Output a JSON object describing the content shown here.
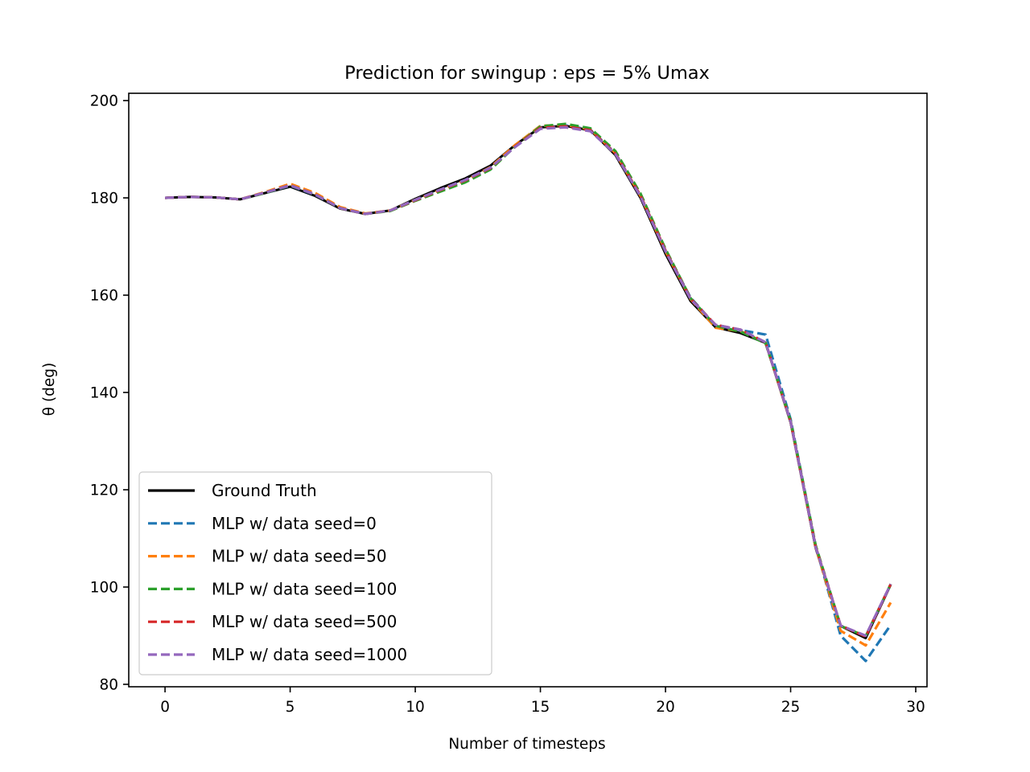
{
  "chart_data": {
    "type": "line",
    "title": "Prediction for swingup : eps = 5% Umax",
    "xlabel": "Number of timesteps",
    "ylabel": "θ (deg)",
    "xlim": [
      -1.45,
      30.45
    ],
    "ylim": [
      79.5,
      201.5
    ],
    "x_ticks": [
      "0",
      "5",
      "10",
      "15",
      "20",
      "25",
      "30"
    ],
    "y_ticks": [
      "80",
      "100",
      "120",
      "140",
      "160",
      "180",
      "200"
    ],
    "grid": false,
    "legend_position": "lower-left",
    "x": [
      0,
      1,
      2,
      3,
      4,
      5,
      6,
      7,
      8,
      9,
      10,
      11,
      12,
      13,
      14,
      15,
      16,
      17,
      18,
      19,
      20,
      21,
      22,
      23,
      24,
      25,
      26,
      27,
      28,
      29
    ],
    "series": [
      {
        "name": "Ground Truth",
        "color": "#000000",
        "style": "solid",
        "values": [
          180.0,
          180.2,
          180.1,
          179.7,
          181.0,
          182.3,
          180.4,
          177.8,
          176.7,
          177.4,
          179.8,
          182.0,
          184.0,
          186.6,
          190.9,
          194.5,
          194.8,
          193.9,
          188.8,
          180.0,
          168.5,
          158.8,
          153.4,
          152.2,
          150.2,
          133.8,
          108.0,
          92.0,
          89.5,
          100.5
        ]
      },
      {
        "name": "MLP w/ data seed=0",
        "color": "#1f77b4",
        "style": "dashed",
        "values": [
          180.0,
          180.2,
          180.1,
          179.7,
          181.0,
          182.5,
          180.6,
          177.9,
          176.7,
          177.4,
          179.6,
          181.6,
          183.5,
          186.0,
          190.6,
          194.4,
          194.9,
          194.0,
          189.2,
          180.4,
          169.2,
          159.5,
          153.8,
          152.8,
          151.9,
          134.5,
          108.5,
          90.0,
          84.8,
          92.2
        ]
      },
      {
        "name": "MLP w/ data seed=50",
        "color": "#ff7f0e",
        "style": "dashed",
        "values": [
          180.0,
          180.2,
          180.1,
          179.7,
          181.2,
          182.9,
          181.0,
          178.1,
          176.8,
          177.4,
          179.6,
          181.6,
          183.6,
          186.3,
          190.9,
          194.8,
          195.0,
          194.1,
          189.2,
          180.4,
          169.0,
          159.2,
          153.3,
          152.6,
          150.2,
          134.0,
          108.2,
          91.0,
          88.0,
          96.8
        ]
      },
      {
        "name": "MLP w/ data seed=100",
        "color": "#2ca02c",
        "style": "dashed",
        "values": [
          180.0,
          180.2,
          180.1,
          179.7,
          181.0,
          182.6,
          180.7,
          177.9,
          176.7,
          177.3,
          179.4,
          181.3,
          183.2,
          185.8,
          190.6,
          194.7,
          195.2,
          194.3,
          189.6,
          180.9,
          169.5,
          159.4,
          153.7,
          152.5,
          150.1,
          134.2,
          108.6,
          92.0,
          89.9,
          100.6
        ]
      },
      {
        "name": "MLP w/ data seed=500",
        "color": "#d62728",
        "style": "dashed",
        "values": [
          180.0,
          180.2,
          180.1,
          179.7,
          181.1,
          182.6,
          180.7,
          177.9,
          176.7,
          177.4,
          179.5,
          181.6,
          183.6,
          186.1,
          190.6,
          194.4,
          194.7,
          193.9,
          189.1,
          180.5,
          169.2,
          159.3,
          153.9,
          152.9,
          150.3,
          134.0,
          108.3,
          92.1,
          89.8,
          100.6
        ]
      },
      {
        "name": "MLP w/ data seed=1000",
        "color": "#9467bd",
        "style": "dashed",
        "values": [
          180.0,
          180.2,
          180.1,
          179.7,
          181.1,
          182.6,
          180.7,
          177.9,
          176.7,
          177.4,
          179.6,
          181.7,
          183.7,
          186.2,
          190.5,
          194.2,
          194.5,
          193.7,
          189.0,
          180.3,
          169.0,
          159.2,
          153.9,
          152.9,
          150.3,
          134.0,
          108.2,
          92.1,
          90.0,
          100.6
        ]
      }
    ]
  }
}
